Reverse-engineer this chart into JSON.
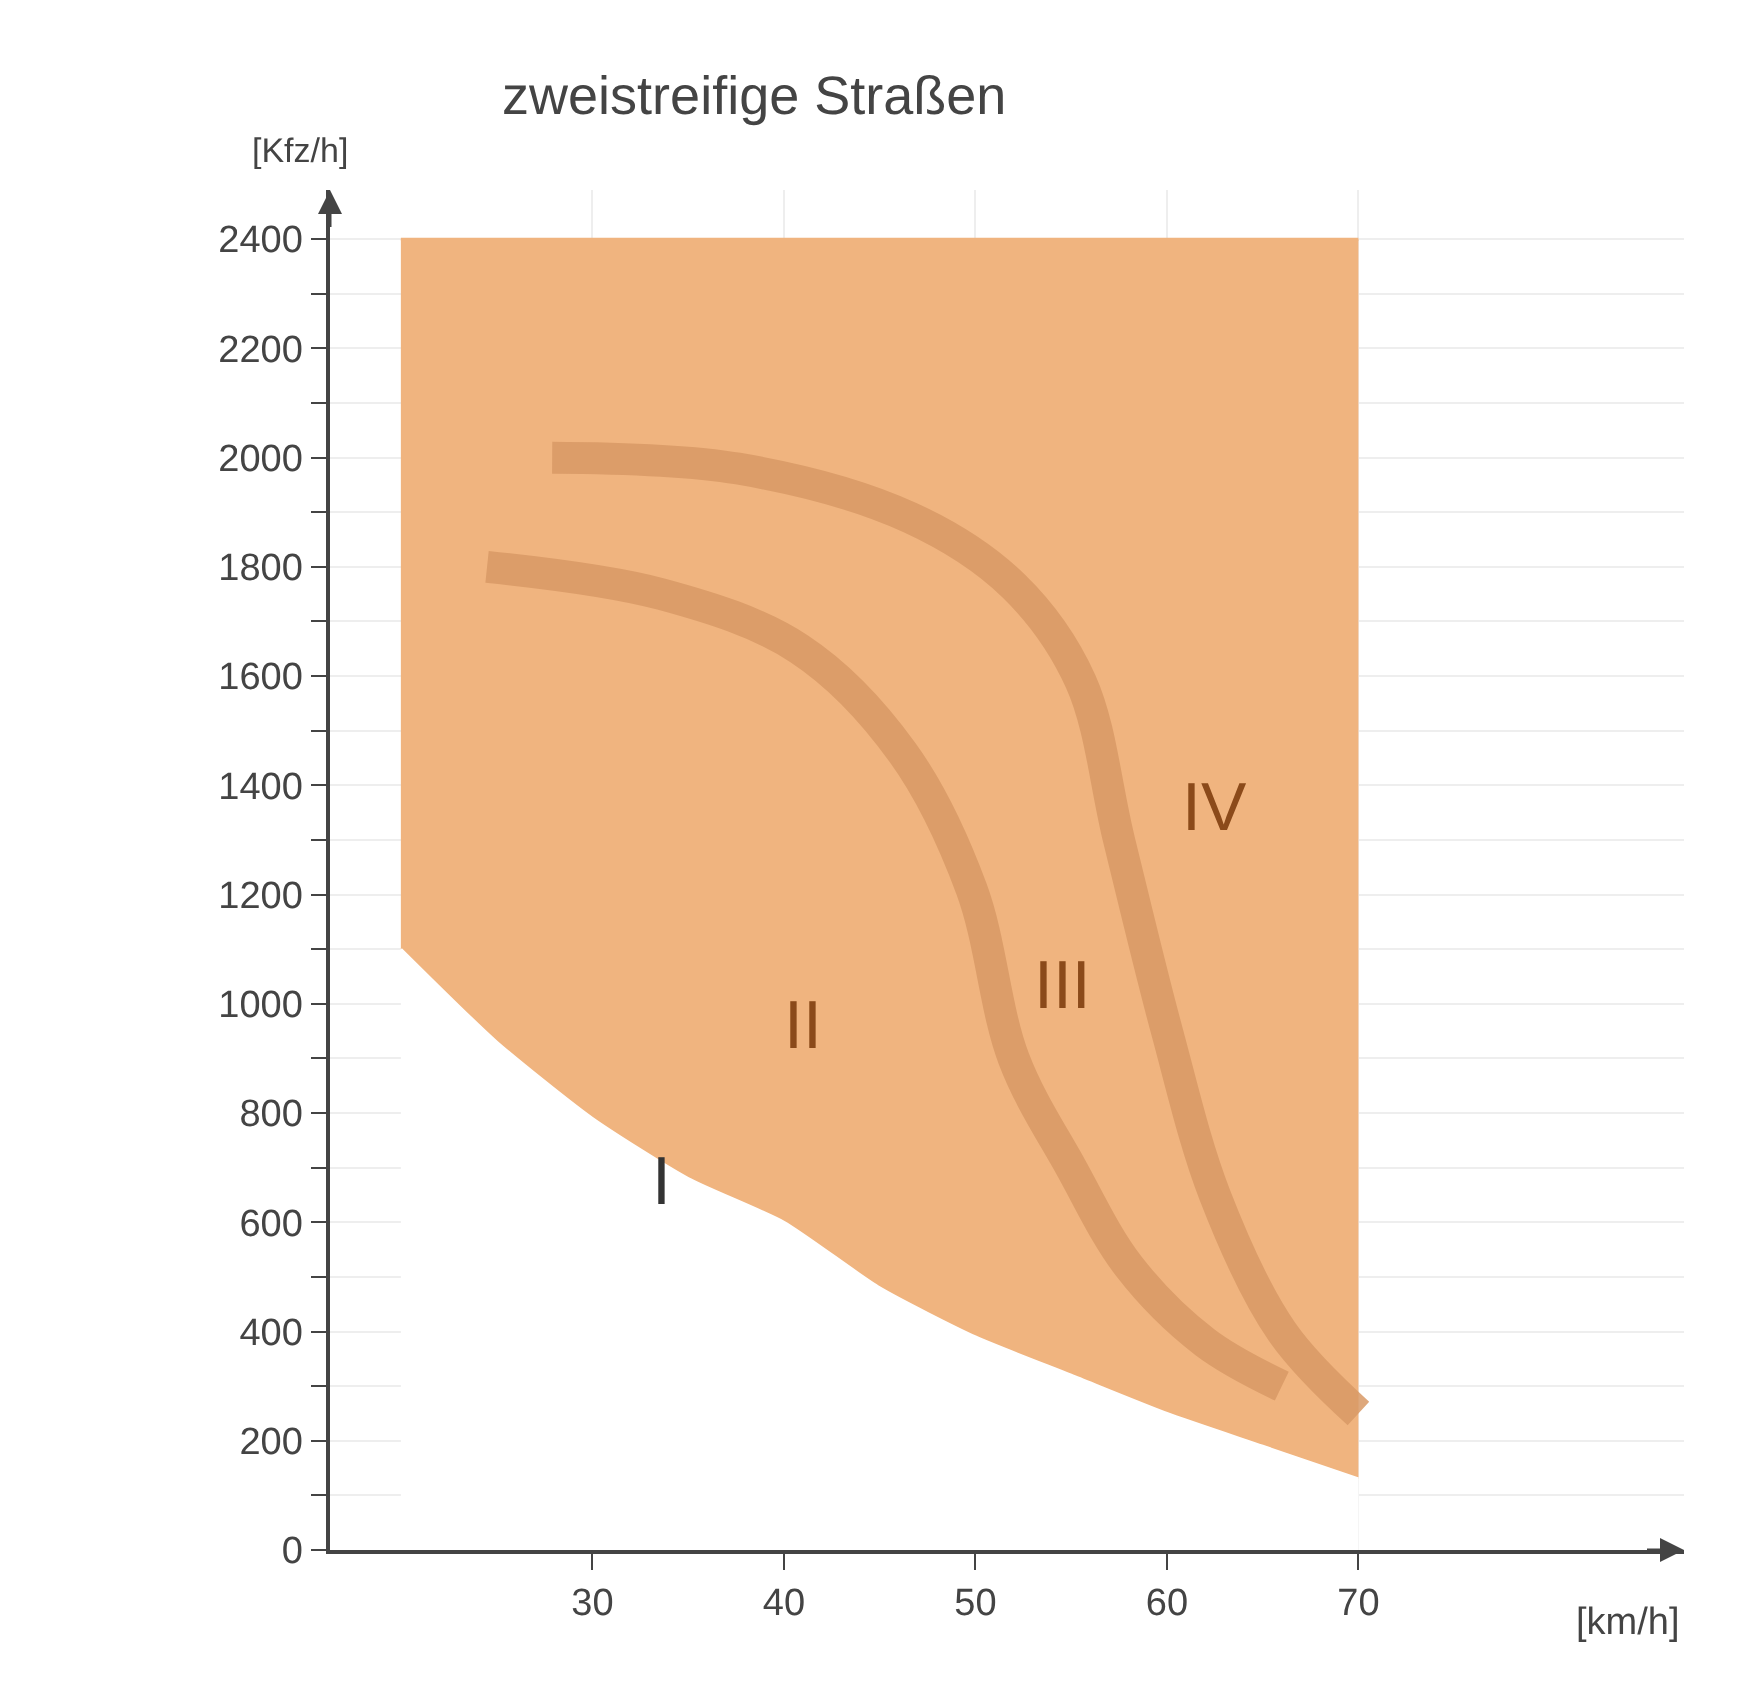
{
  "chart_data": {
    "type": "area",
    "title": "zweistreifige Straßen",
    "xlabel": "[km/h]",
    "ylabel": "[Kfz/h]",
    "xlim": [
      16.3,
      87
    ],
    "ylim": [
      0,
      2490
    ],
    "xticks": [
      30,
      40,
      50,
      60,
      70
    ],
    "yticks": [
      0,
      {
        "value": 100,
        "label": null
      },
      200,
      {
        "value": 300,
        "label": null
      },
      400,
      {
        "value": 500,
        "label": null
      },
      600,
      {
        "value": 700,
        "label": null
      },
      800,
      {
        "value": 900,
        "label": null
      },
      1000,
      {
        "value": 1100,
        "label": null
      },
      1200,
      {
        "value": 1300,
        "label": null
      },
      1400,
      {
        "value": 1500,
        "label": null
      },
      1600,
      {
        "value": 1700,
        "label": null
      },
      1800,
      {
        "value": 1900,
        "label": null
      },
      2000,
      {
        "value": 2100,
        "label": null
      },
      2200,
      {
        "value": 2300,
        "label": null
      },
      2400
    ],
    "grid": true,
    "stacked": true,
    "series": [
      {
        "color": "#ffffff",
        "x": [
          20,
          25,
          30,
          35,
          40,
          45,
          50,
          55,
          60,
          65,
          70
        ],
        "values": [
          1100,
          930,
          790,
          680,
          600,
          480,
          390,
          320,
          250,
          190,
          130
        ]
      },
      {
        "color": "#f0b47f",
        "x": [
          20,
          25,
          30,
          35,
          40,
          45,
          50,
          55,
          60,
          65,
          70
        ],
        "values": [
          1300,
          1470,
          1610,
          1720,
          1800,
          1920,
          2010,
          2080,
          2150,
          2210,
          2270
        ]
      },
      {
        "type": "line",
        "color": "#d99a66",
        "x": [
          24.5,
          33.6,
          40.8,
          46.2,
          49.8,
          52,
          55,
          58,
          62,
          66
        ],
        "values": [
          1800,
          1750,
          1650,
          1460,
          1210,
          900,
          700,
          520,
          380,
          300
        ]
      },
      {
        "type": "line",
        "color": "#d99a66",
        "x": [
          27.9,
          37.6,
          46.6,
          52,
          55.5,
          57.5,
          60,
          62.5,
          66,
          70
        ],
        "values": [
          2000,
          1980,
          1890,
          1765,
          1590,
          1300,
          950,
          650,
          400,
          250
        ]
      }
    ],
    "annotations": [
      "I",
      "II",
      "III",
      "IV"
    ]
  }
}
